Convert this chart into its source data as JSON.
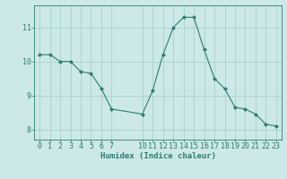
{
  "x": [
    0,
    1,
    2,
    3,
    4,
    5,
    6,
    7,
    10,
    11,
    12,
    13,
    14,
    15,
    16,
    17,
    18,
    19,
    20,
    21,
    22,
    23
  ],
  "y": [
    10.2,
    10.2,
    10.0,
    10.0,
    9.7,
    9.65,
    9.2,
    8.6,
    8.45,
    9.15,
    10.2,
    11.0,
    11.3,
    11.3,
    10.35,
    9.5,
    9.2,
    8.65,
    8.6,
    8.45,
    8.15,
    8.1
  ],
  "line_color": "#2d7d74",
  "marker": "D",
  "marker_size": 2,
  "bg_color": "#cce8e8",
  "grid_color": "#aacfcf",
  "axis_color": "#2d7d74",
  "xlabel": "Humidex (Indice chaleur)",
  "xlabel_fontsize": 6.5,
  "tick_fontsize": 6,
  "yticks": [
    8,
    9,
    10,
    11
  ],
  "xticks": [
    0,
    1,
    2,
    3,
    4,
    5,
    6,
    7,
    10,
    11,
    12,
    13,
    14,
    15,
    16,
    17,
    18,
    19,
    20,
    21,
    22,
    23
  ],
  "ylim": [
    7.7,
    11.65
  ],
  "xlim": [
    -0.5,
    23.5
  ]
}
